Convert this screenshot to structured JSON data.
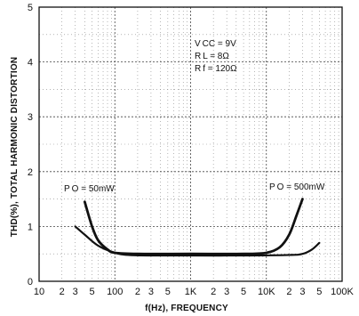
{
  "chart_data": {
    "type": "line",
    "title": "",
    "xlabel": "f(Hz), FREQUENCY",
    "ylabel": "THD(%), TOTAL HARMONIC DISTORTION",
    "xscale": "log",
    "xlim": [
      10,
      100000
    ],
    "ylim": [
      0,
      5
    ],
    "grid": true,
    "x_tick_labels": [
      "10",
      "2",
      "3",
      "5",
      "100",
      "2",
      "3",
      "5",
      "1K",
      "2",
      "3",
      "5",
      "10K",
      "2",
      "3",
      "5",
      "100K"
    ],
    "y_tick_labels": [
      "0",
      "1",
      "2",
      "3",
      "4",
      "5"
    ],
    "conditions": [
      "V CC = 9V",
      "R L = 8Ω",
      "R f = 120Ω"
    ],
    "series": [
      {
        "name": "P O = 50mW",
        "x": [
          30,
          40,
          60,
          100,
          150,
          300,
          1000,
          5000,
          20000,
          30000,
          40000,
          50000
        ],
        "y": [
          1.0,
          0.85,
          0.65,
          0.52,
          0.48,
          0.47,
          0.47,
          0.47,
          0.48,
          0.5,
          0.58,
          0.7
        ]
      },
      {
        "name": "P O = 500mW",
        "x": [
          40,
          50,
          60,
          80,
          100,
          200,
          1000,
          5000,
          10000,
          15000,
          20000,
          25000,
          30000
        ],
        "y": [
          1.45,
          1.0,
          0.75,
          0.58,
          0.52,
          0.5,
          0.5,
          0.5,
          0.52,
          0.62,
          0.85,
          1.2,
          1.5
        ]
      }
    ]
  }
}
